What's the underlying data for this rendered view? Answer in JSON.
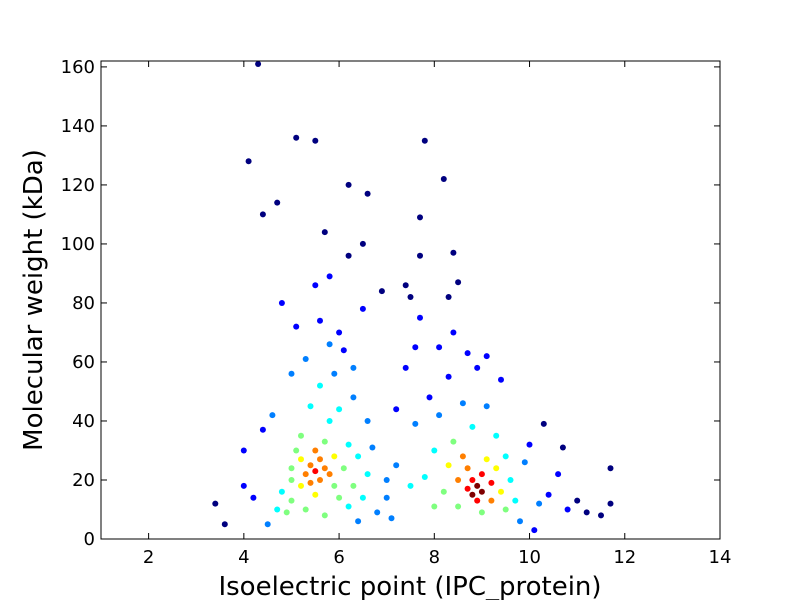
{
  "chart_data": {
    "type": "scatter",
    "title": "",
    "xlabel": "Isoelectric point (IPC_protein)",
    "ylabel": "Molecular weight (kDa)",
    "xlim": [
      1,
      14
    ],
    "ylim": [
      0,
      162
    ],
    "xticks": [
      2,
      4,
      6,
      8,
      10,
      12,
      14
    ],
    "yticks": [
      0,
      20,
      40,
      60,
      80,
      100,
      120,
      140,
      160
    ],
    "grid": false,
    "legend": "none",
    "color_encoding": "point density (jet colormap: blue = low, red = high)",
    "colormap": [
      "#00007f",
      "#0000ff",
      "#007fff",
      "#00ffff",
      "#7fff7f",
      "#ffff00",
      "#ff7f00",
      "#ff0000",
      "#7f0000"
    ],
    "points": [
      [
        3.4,
        12,
        0.05
      ],
      [
        3.6,
        5,
        0.05
      ],
      [
        4.0,
        18,
        0.1
      ],
      [
        4.0,
        30,
        0.1
      ],
      [
        4.1,
        128,
        0.02
      ],
      [
        4.2,
        14,
        0.15
      ],
      [
        4.3,
        161,
        0.02
      ],
      [
        4.4,
        37,
        0.15
      ],
      [
        4.4,
        110,
        0.02
      ],
      [
        4.5,
        5,
        0.2
      ],
      [
        4.6,
        42,
        0.2
      ],
      [
        4.7,
        114,
        0.02
      ],
      [
        4.7,
        10,
        0.35
      ],
      [
        4.8,
        16,
        0.4
      ],
      [
        4.8,
        80,
        0.1
      ],
      [
        4.9,
        9,
        0.45
      ],
      [
        5.0,
        13,
        0.5
      ],
      [
        5.0,
        20,
        0.55
      ],
      [
        5.0,
        24,
        0.5
      ],
      [
        5.0,
        56,
        0.25
      ],
      [
        5.1,
        136,
        0.02
      ],
      [
        5.1,
        30,
        0.5
      ],
      [
        5.1,
        72,
        0.15
      ],
      [
        5.2,
        18,
        0.6
      ],
      [
        5.2,
        27,
        0.65
      ],
      [
        5.2,
        35,
        0.45
      ],
      [
        5.3,
        22,
        0.7
      ],
      [
        5.3,
        61,
        0.2
      ],
      [
        5.3,
        10,
        0.55
      ],
      [
        5.4,
        25,
        0.8
      ],
      [
        5.4,
        19,
        0.75
      ],
      [
        5.4,
        45,
        0.35
      ],
      [
        5.5,
        135,
        0.02
      ],
      [
        5.5,
        23,
        0.85
      ],
      [
        5.5,
        30,
        0.7
      ],
      [
        5.5,
        86,
        0.1
      ],
      [
        5.5,
        15,
        0.65
      ],
      [
        5.6,
        27,
        0.8
      ],
      [
        5.6,
        20,
        0.8
      ],
      [
        5.6,
        52,
        0.35
      ],
      [
        5.6,
        74,
        0.15
      ],
      [
        5.7,
        24,
        0.75
      ],
      [
        5.7,
        33,
        0.55
      ],
      [
        5.7,
        104,
        0.05
      ],
      [
        5.7,
        8,
        0.5
      ],
      [
        5.8,
        22,
        0.7
      ],
      [
        5.8,
        89,
        0.08
      ],
      [
        5.8,
        40,
        0.4
      ],
      [
        5.8,
        66,
        0.2
      ],
      [
        5.9,
        28,
        0.6
      ],
      [
        5.9,
        18,
        0.55
      ],
      [
        5.9,
        56,
        0.3
      ],
      [
        6.0,
        14,
        0.45
      ],
      [
        6.0,
        44,
        0.35
      ],
      [
        6.0,
        70,
        0.15
      ],
      [
        6.1,
        24,
        0.5
      ],
      [
        6.1,
        64,
        0.15
      ],
      [
        6.2,
        120,
        0.02
      ],
      [
        6.2,
        11,
        0.4
      ],
      [
        6.2,
        32,
        0.4
      ],
      [
        6.2,
        96,
        0.05
      ],
      [
        6.3,
        18,
        0.45
      ],
      [
        6.3,
        48,
        0.25
      ],
      [
        6.3,
        58,
        0.2
      ],
      [
        6.4,
        6,
        0.3
      ],
      [
        6.4,
        28,
        0.4
      ],
      [
        6.5,
        100,
        0.05
      ],
      [
        6.5,
        78,
        0.1
      ],
      [
        6.5,
        14,
        0.35
      ],
      [
        6.6,
        117,
        0.02
      ],
      [
        6.6,
        40,
        0.25
      ],
      [
        6.6,
        22,
        0.35
      ],
      [
        6.7,
        31,
        0.3
      ],
      [
        6.8,
        9,
        0.3
      ],
      [
        6.9,
        84,
        0.05
      ],
      [
        7.0,
        14,
        0.3
      ],
      [
        7.0,
        20,
        0.3
      ],
      [
        7.1,
        7,
        0.25
      ],
      [
        7.2,
        44,
        0.15
      ],
      [
        7.2,
        25,
        0.3
      ],
      [
        7.4,
        86,
        0.05
      ],
      [
        7.4,
        58,
        0.1
      ],
      [
        7.5,
        82,
        0.05
      ],
      [
        7.5,
        18,
        0.35
      ],
      [
        7.6,
        39,
        0.2
      ],
      [
        7.6,
        65,
        0.1
      ],
      [
        7.7,
        109,
        0.03
      ],
      [
        7.7,
        96,
        0.03
      ],
      [
        7.7,
        75,
        0.08
      ],
      [
        7.8,
        21,
        0.4
      ],
      [
        7.8,
        135,
        0.02
      ],
      [
        7.9,
        48,
        0.15
      ],
      [
        8.0,
        11,
        0.45
      ],
      [
        8.0,
        30,
        0.4
      ],
      [
        8.1,
        65,
        0.1
      ],
      [
        8.1,
        42,
        0.25
      ],
      [
        8.2,
        122,
        0.02
      ],
      [
        8.2,
        16,
        0.55
      ],
      [
        8.3,
        82,
        0.05
      ],
      [
        8.3,
        25,
        0.6
      ],
      [
        8.3,
        55,
        0.15
      ],
      [
        8.4,
        97,
        0.04
      ],
      [
        8.4,
        70,
        0.08
      ],
      [
        8.4,
        33,
        0.45
      ],
      [
        8.5,
        20,
        0.7
      ],
      [
        8.5,
        87,
        0.05
      ],
      [
        8.5,
        11,
        0.55
      ],
      [
        8.6,
        28,
        0.7
      ],
      [
        8.6,
        46,
        0.25
      ],
      [
        8.7,
        63,
        0.1
      ],
      [
        8.7,
        17,
        0.85
      ],
      [
        8.7,
        24,
        0.8
      ],
      [
        8.8,
        15,
        0.95
      ],
      [
        8.8,
        20,
        0.9
      ],
      [
        8.8,
        38,
        0.35
      ],
      [
        8.9,
        18,
        0.95
      ],
      [
        8.9,
        13,
        0.85
      ],
      [
        8.9,
        58,
        0.12
      ],
      [
        9.0,
        22,
        0.85
      ],
      [
        9.0,
        16,
        0.95
      ],
      [
        9.0,
        9,
        0.55
      ],
      [
        9.1,
        62,
        0.08
      ],
      [
        9.1,
        27,
        0.65
      ],
      [
        9.1,
        45,
        0.2
      ],
      [
        9.2,
        19,
        0.85
      ],
      [
        9.2,
        13,
        0.75
      ],
      [
        9.3,
        24,
        0.6
      ],
      [
        9.3,
        35,
        0.35
      ],
      [
        9.4,
        54,
        0.1
      ],
      [
        9.4,
        16,
        0.6
      ],
      [
        9.5,
        10,
        0.45
      ],
      [
        9.5,
        28,
        0.35
      ],
      [
        9.6,
        20,
        0.4
      ],
      [
        9.7,
        13,
        0.35
      ],
      [
        9.8,
        6,
        0.3
      ],
      [
        9.9,
        26,
        0.25
      ],
      [
        10.0,
        32,
        0.1
      ],
      [
        10.1,
        3,
        0.15
      ],
      [
        10.2,
        12,
        0.2
      ],
      [
        10.3,
        39,
        0.05
      ],
      [
        10.4,
        15,
        0.15
      ],
      [
        10.6,
        22,
        0.1
      ],
      [
        10.7,
        31,
        0.05
      ],
      [
        10.8,
        10,
        0.1
      ],
      [
        11.0,
        13,
        0.05
      ],
      [
        11.2,
        9,
        0.05
      ],
      [
        11.5,
        8,
        0.03
      ],
      [
        11.7,
        24,
        0.03
      ],
      [
        11.7,
        12,
        0.03
      ]
    ]
  }
}
